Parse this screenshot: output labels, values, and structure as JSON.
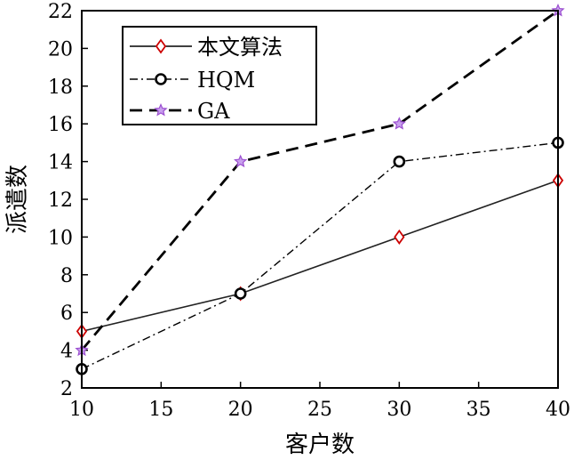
{
  "chart_data": {
    "type": "line",
    "xlabel": "客户数",
    "ylabel": "派遣数",
    "xlim": [
      10,
      40
    ],
    "ylim": [
      2,
      22
    ],
    "xticks": [
      10,
      15,
      20,
      25,
      30,
      35,
      40
    ],
    "yticks": [
      2,
      4,
      6,
      8,
      10,
      12,
      14,
      16,
      18,
      20,
      22
    ],
    "grid": false,
    "legend_position": "top-left",
    "x": [
      10,
      20,
      30,
      40
    ],
    "series": [
      {
        "name": "本文算法",
        "values": [
          5,
          7,
          10,
          13
        ],
        "color": "#cc0000",
        "line_style": "solid",
        "marker": "diamond"
      },
      {
        "name": "HQM",
        "values": [
          3,
          7,
          14,
          15
        ],
        "color": "#000000",
        "line_style": "dash-dot",
        "marker": "circle"
      },
      {
        "name": "GA",
        "values": [
          4,
          14,
          16,
          22
        ],
        "color": "#9b4fd0",
        "line_style": "dashed",
        "marker": "star"
      }
    ]
  }
}
